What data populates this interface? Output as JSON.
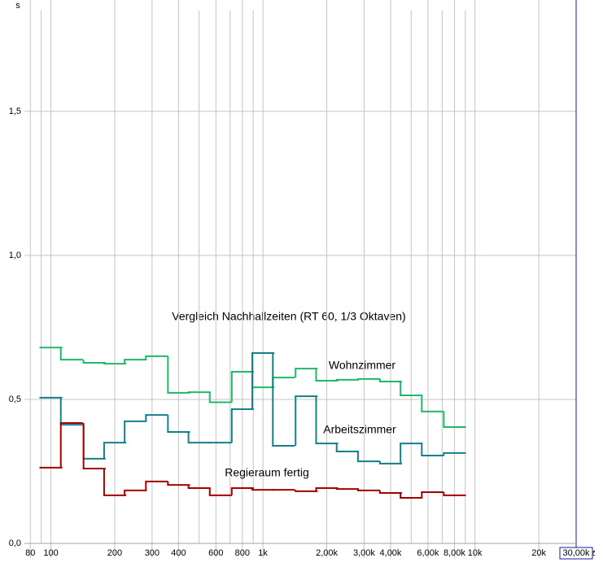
{
  "chart_data": {
    "type": "step-line",
    "title": "Vergleich Nachhallzeiten (RT 60, 1/3 Oktaven)",
    "ylabel": "s",
    "xlabel": "z",
    "xscale": "log",
    "grid": true,
    "x": [
      100,
      125,
      160,
      200,
      250,
      315,
      400,
      500,
      630,
      800,
      1000,
      1250,
      1600,
      2000,
      2500,
      3150,
      4000,
      5000,
      6300,
      8000
    ],
    "series": [
      {
        "name": "Wohnzimmer",
        "color": "#1fb86a",
        "values": [
          0.68,
          0.638,
          0.627,
          0.624,
          0.638,
          0.65,
          0.523,
          0.525,
          0.49,
          0.596,
          0.542,
          0.576,
          0.607,
          0.565,
          0.568,
          0.571,
          0.562,
          0.514,
          0.458,
          0.404
        ]
      },
      {
        "name": "Arbeitszimmer",
        "color": "#13808a",
        "values": [
          0.506,
          0.412,
          0.294,
          0.35,
          0.424,
          0.446,
          0.387,
          0.35,
          0.35,
          0.466,
          0.661,
          0.339,
          0.511,
          0.347,
          0.319,
          0.285,
          0.277,
          0.347,
          0.305,
          0.314
        ]
      },
      {
        "name": "Regieraum fertig",
        "color": "#a50000",
        "values": [
          0.263,
          0.418,
          0.26,
          0.167,
          0.184,
          0.215,
          0.203,
          0.192,
          0.167,
          0.192,
          0.186,
          0.186,
          0.181,
          0.192,
          0.189,
          0.184,
          0.175,
          0.158,
          0.178,
          0.167
        ]
      }
    ],
    "xlim": [
      75,
      30000
    ],
    "ylim": [
      0,
      1.85
    ],
    "xticks": [
      80,
      100,
      200,
      300,
      400,
      600,
      800,
      {
        "value": 1000,
        "label": "1k"
      },
      {
        "value": 2000,
        "label": "2,00k"
      },
      {
        "value": 3000,
        "label": "3,00k"
      },
      {
        "value": 4000,
        "label": "4,00k"
      },
      {
        "value": 6000,
        "label": "6,00k"
      },
      {
        "value": 8000,
        "label": "8,00k"
      },
      {
        "value": 10000,
        "label": "10k"
      },
      {
        "value": 20000,
        "label": "20k"
      },
      {
        "value": 30000,
        "label": "30,00k"
      }
    ],
    "xminorticks": [
      90,
      500,
      700,
      900,
      5000,
      7000,
      9000
    ],
    "yticks": [
      {
        "value": 0,
        "label": "0,0"
      },
      {
        "value": 0.5,
        "label": "0,5"
      },
      {
        "value": 1,
        "label": "1,0"
      },
      {
        "value": 1.5,
        "label": "1,5"
      }
    ]
  }
}
